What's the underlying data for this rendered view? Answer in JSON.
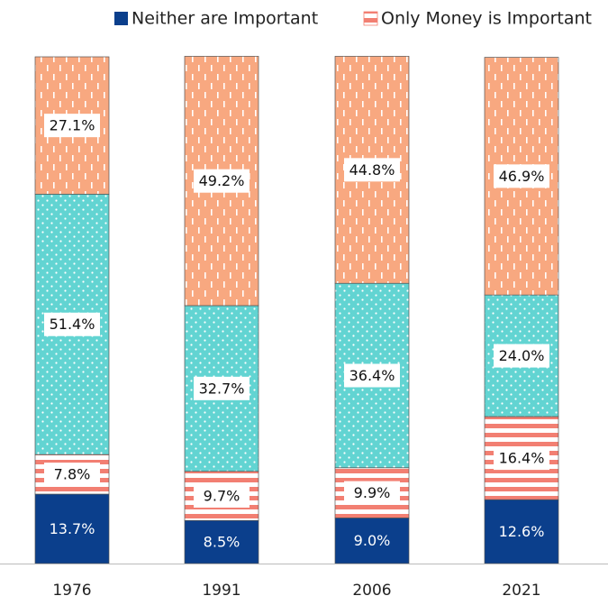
{
  "chart_data": {
    "type": "stacked-bar",
    "categories": [
      "1976",
      "1991",
      "2006",
      "2021"
    ],
    "series": [
      {
        "name": "Neither are Important",
        "color": "#0b3f8c",
        "pattern": "solid",
        "values": [
          13.7,
          8.5,
          9.0,
          12.6
        ],
        "value_labels": [
          "13.7%",
          "8.5%",
          "9.0%",
          "12.6%"
        ]
      },
      {
        "name": "Only Money is Important",
        "color": "#f27f72",
        "pattern": "horizontal-stripes",
        "values": [
          7.8,
          9.7,
          9.9,
          16.4
        ],
        "value_labels": [
          "7.8%",
          "9.7%",
          "9.9%",
          "16.4%"
        ]
      },
      {
        "color": "#62d4d2",
        "pattern": "dots",
        "values": [
          51.4,
          32.7,
          36.4,
          24.0
        ],
        "value_labels": [
          "51.4%",
          "32.7%",
          "36.4%",
          "24.0%"
        ]
      },
      {
        "color": "#f8a880",
        "pattern": "vertical-dashes",
        "values": [
          27.1,
          49.2,
          44.8,
          46.9
        ],
        "value_labels": [
          "27.1%",
          "49.2%",
          "44.8%",
          "46.9%"
        ]
      }
    ],
    "ylim": [
      0,
      100
    ]
  }
}
